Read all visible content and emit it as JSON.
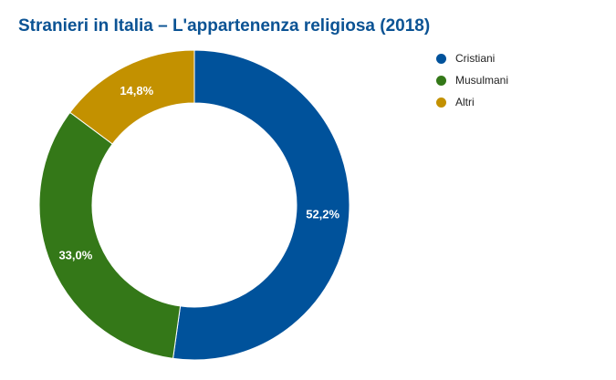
{
  "chart_data": {
    "type": "pie",
    "title": "Stranieri in Italia – L'appartenenza religiosa (2018)",
    "categories": [
      "Cristiani",
      "Musulmani",
      "Altri"
    ],
    "values": [
      52.2,
      33.0,
      14.8
    ],
    "labels": [
      "52,2%",
      "33,0%",
      "14,8%"
    ],
    "colors": [
      "#00529b",
      "#347818",
      "#c39100"
    ],
    "donut": true,
    "legend_position": "right"
  }
}
